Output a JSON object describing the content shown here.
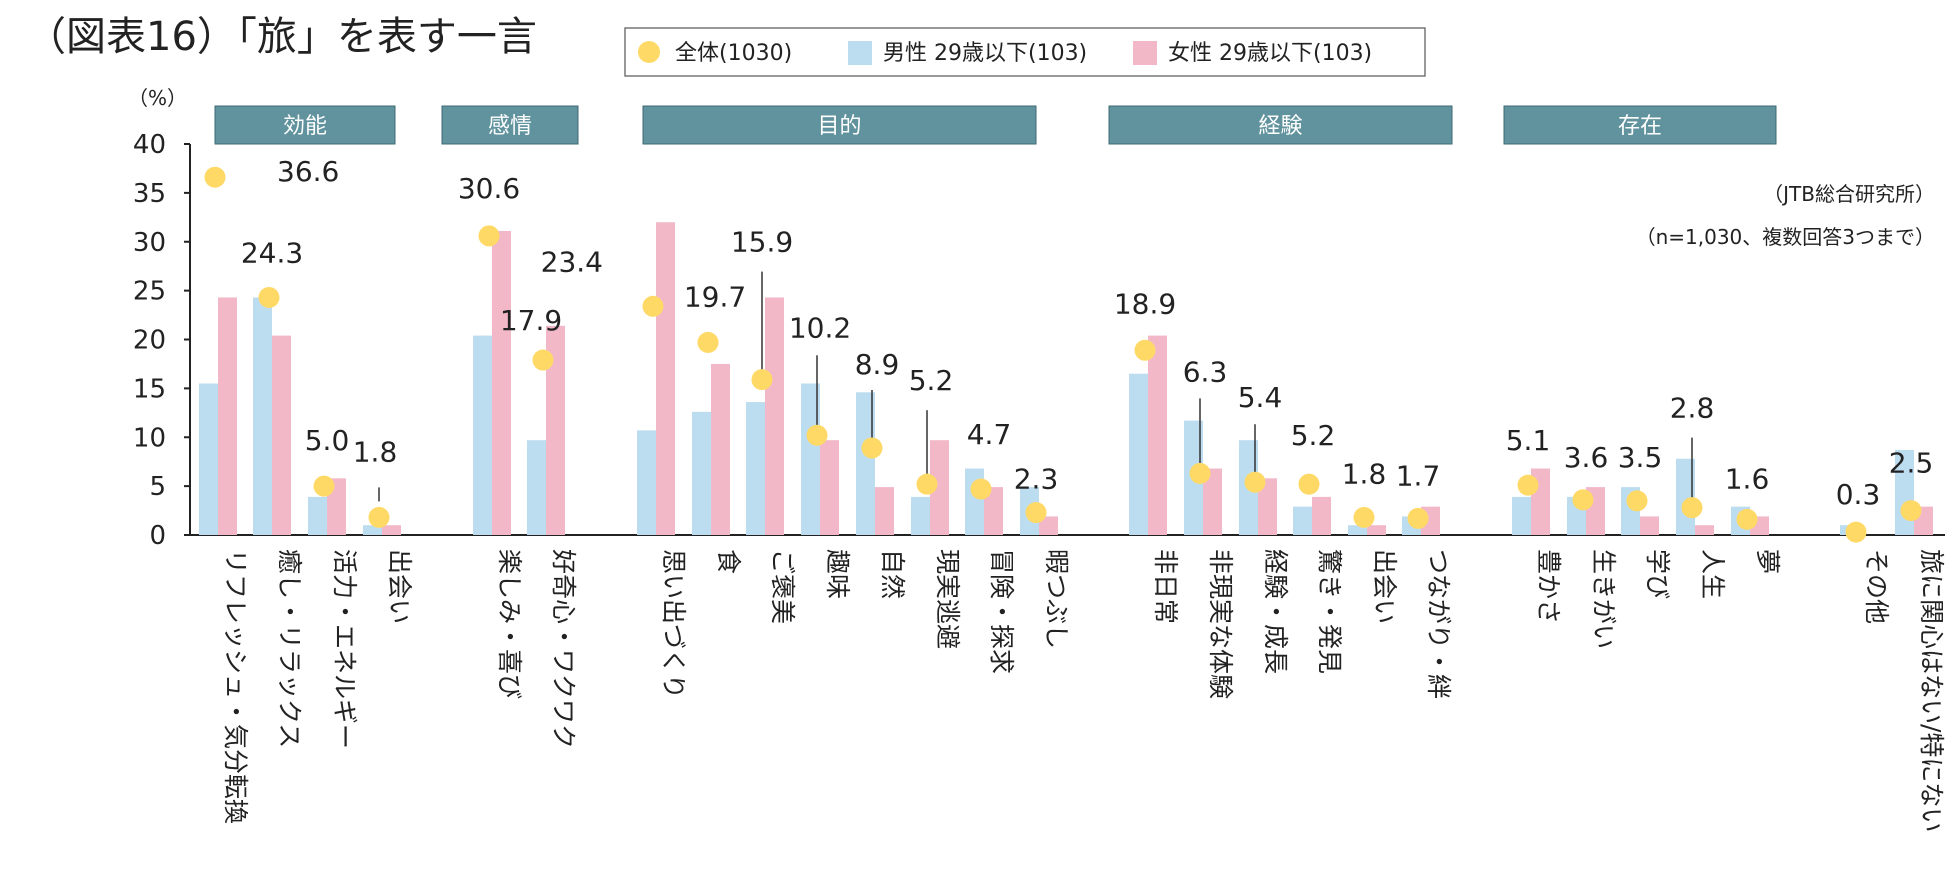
{
  "chart_data": {
    "type": "bar",
    "title": "（図表16）「旅」を表す一言",
    "ylabel": "（%）",
    "ylim": [
      0,
      40
    ],
    "yticks": [
      0,
      5,
      10,
      15,
      20,
      25,
      30,
      35,
      40
    ],
    "source": "（JTB総合研究所）",
    "sample_note": "（n=1,030、複数回答3つまで）",
    "colors": {
      "overall": "#ffd966",
      "male": "#bcdcf0",
      "female": "#f2b8c8",
      "group_header": "#61939e",
      "axis": "#222222"
    },
    "legend": [
      {
        "key": "overall",
        "label": "全体(1030)"
      },
      {
        "key": "male",
        "label": "男性 29歳以下(103)"
      },
      {
        "key": "female",
        "label": "女性 29歳以下(103)"
      }
    ],
    "groups": [
      {
        "label": "効能",
        "first": 0,
        "last": 3
      },
      {
        "label": "感情",
        "first": 4,
        "last": 5
      },
      {
        "label": "目的",
        "first": 6,
        "last": 13
      },
      {
        "label": "経験",
        "first": 14,
        "last": 19
      },
      {
        "label": "存在",
        "first": 20,
        "last": 24
      }
    ],
    "categories": [
      "リフレッシュ・気分転換",
      "癒し・リラックス",
      "活力・エネルギー",
      "出会い",
      "楽しみ・喜び",
      "好奇心・ワクワク",
      "思い出づくり",
      "食",
      "ご褒美",
      "趣味",
      "自然",
      "現実逃避",
      "冒険・探求",
      "暇つぶし",
      "非日常",
      "非現実な体験",
      "経験・成長",
      "驚き・発見",
      "出会い",
      "つながり・絆",
      "豊かさ",
      "生きがい",
      "学び",
      "人生",
      "夢",
      "その他",
      "旅に関心はない/特にない"
    ],
    "series": [
      {
        "name": "全体(1030)",
        "key": "overall",
        "values": [
          36.6,
          24.3,
          5.0,
          1.8,
          30.6,
          17.9,
          23.4,
          19.7,
          15.9,
          10.2,
          8.9,
          5.2,
          4.7,
          2.3,
          18.9,
          6.3,
          5.4,
          5.2,
          1.8,
          1.7,
          5.1,
          3.6,
          3.5,
          2.8,
          1.6,
          0.3,
          2.5
        ]
      },
      {
        "name": "男性 29歳以下(103)",
        "key": "male",
        "values": [
          15.5,
          24.3,
          3.9,
          1.0,
          20.4,
          9.7,
          10.7,
          12.6,
          13.6,
          15.5,
          14.6,
          3.9,
          6.8,
          4.9,
          16.5,
          11.7,
          9.7,
          2.9,
          1.0,
          1.9,
          3.9,
          3.9,
          4.9,
          7.8,
          2.9,
          1.0,
          8.7
        ]
      },
      {
        "name": "女性 29歳以下(103)",
        "key": "female",
        "values": [
          24.3,
          20.4,
          5.8,
          1.0,
          31.1,
          21.4,
          32.0,
          17.5,
          24.3,
          9.7,
          4.9,
          9.7,
          4.9,
          1.9,
          20.4,
          6.8,
          5.8,
          3.9,
          1.0,
          2.9,
          6.8,
          4.9,
          1.9,
          1.0,
          1.9,
          0.0,
          2.9
        ]
      }
    ],
    "value_labels": [
      "36.6",
      "24.3",
      "5.0",
      "1.8",
      "30.6",
      "17.9",
      "23.4",
      "19.7",
      "15.9",
      "10.2",
      "8.9",
      "5.2",
      "4.7",
      "2.3",
      "18.9",
      "6.3",
      "5.4",
      "5.2",
      "1.8",
      "1.7",
      "5.1",
      "3.6",
      "3.5",
      "2.8",
      "1.6",
      "0.3",
      "2.5"
    ]
  }
}
